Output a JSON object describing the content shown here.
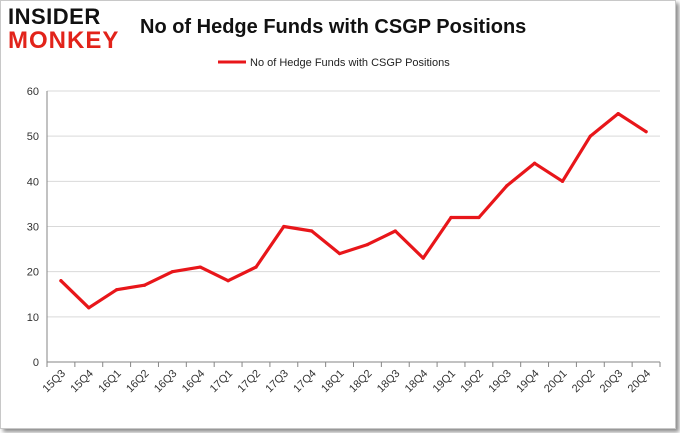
{
  "logo": {
    "line1": "INSIDER",
    "line2": "MONKEY"
  },
  "chart_data": {
    "type": "line",
    "title": "No of Hedge Funds with CSGP Positions",
    "categories": [
      "15Q3",
      "15Q4",
      "16Q1",
      "16Q2",
      "16Q3",
      "16Q4",
      "17Q1",
      "17Q2",
      "17Q3",
      "17Q4",
      "18Q1",
      "18Q2",
      "18Q3",
      "18Q4",
      "19Q1",
      "19Q2",
      "19Q3",
      "19Q4",
      "20Q1",
      "20Q2",
      "20Q3",
      "20Q4"
    ],
    "series": [
      {
        "name": "No of Hedge Funds with CSGP Positions",
        "values": [
          18,
          12,
          16,
          17,
          20,
          21,
          18,
          21,
          30,
          29,
          24,
          26,
          29,
          23,
          32,
          32,
          39,
          44,
          40,
          50,
          55,
          51
        ]
      }
    ],
    "ylim": [
      0,
      60
    ],
    "yticks": [
      0,
      10,
      20,
      30,
      40,
      50,
      60
    ],
    "xlabel": "",
    "ylabel": "",
    "grid": true,
    "legend_position": "top-center",
    "colors": {
      "line": "#e8161a",
      "grid": "#d9d9d9",
      "axis": "#868686"
    }
  }
}
